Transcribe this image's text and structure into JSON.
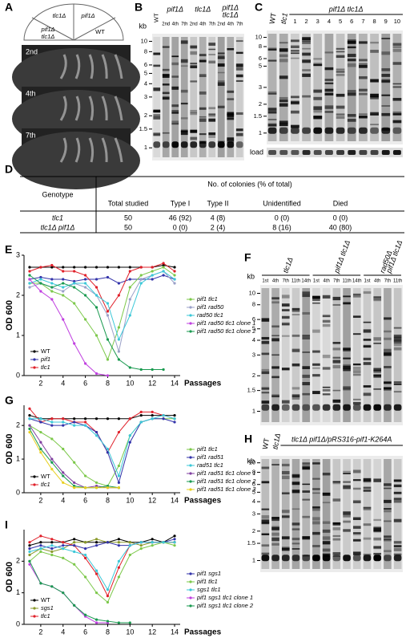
{
  "panel_a": {
    "label": "A",
    "plate_sectors": [
      [
        "tlc1Δ"
      ],
      [
        "pif1Δ"
      ],
      [
        "pif1Δ",
        "tlc1Δ"
      ],
      [
        "WT"
      ]
    ],
    "streaks": [
      "2nd",
      "4th",
      "7th"
    ]
  },
  "panel_b": {
    "label": "B",
    "kb_label": "kb",
    "kb": [
      "10",
      "8",
      "6",
      "5",
      "4",
      "3",
      "2",
      "1.5",
      "1"
    ],
    "lanes": [
      "WT",
      "pif1Δ",
      "tlc1Δ",
      [
        "pif1Δ",
        "tlc1Δ"
      ]
    ],
    "passages": [
      "2nd",
      "4th",
      "7th",
      "2nd",
      "4th",
      "7th",
      "2nd",
      "4th",
      "7th"
    ]
  },
  "panel_c": {
    "label": "C",
    "kb": [
      "10",
      "8",
      "6",
      "5",
      "3",
      "2",
      "1.5",
      "1"
    ],
    "lanes": [
      "WT",
      "tlc1"
    ],
    "group": "pif1Δ tlc1Δ",
    "clones": [
      "1",
      "2",
      "3",
      "4",
      "5",
      "6",
      "7",
      "8",
      "9",
      "10"
    ],
    "load": "load"
  },
  "table": {
    "label": "D",
    "header": [
      "Genotype",
      "No. of colonies (% of total)"
    ],
    "subheader": [
      "Total studied",
      "Type I",
      "Type II",
      "Unidentified",
      "Died"
    ],
    "rows": [
      [
        "tlc1",
        "50",
        "46 (92)",
        "4 (8)",
        "0 (0)",
        "0 (0)"
      ],
      [
        "tlc1Δ pif1Δ",
        "50",
        "0 (0)",
        "2 (4)",
        "8 (16)",
        "40 (80)"
      ]
    ]
  },
  "panel_f": {
    "label": "F",
    "kb_label": "kb",
    "kb": [
      "10",
      "8",
      "6",
      "5",
      "4",
      "3",
      "2",
      "1.5",
      "1"
    ],
    "groups": [
      [
        "tlc1Δ"
      ],
      [
        "pif1Δ tlc1Δ"
      ],
      [
        "rad50Δ",
        "pif1Δ tlc1Δ"
      ]
    ],
    "passages": [
      "1st",
      "4th",
      "7th",
      "11th",
      "14th",
      "1st",
      "4th",
      "7th",
      "11th",
      "14th",
      "1st",
      "4th",
      "7th",
      "11th"
    ]
  },
  "panel_h": {
    "label": "H",
    "kb_label": "kb",
    "kb": [
      "10",
      "8",
      "6",
      "5",
      "4",
      "3",
      "2",
      "1.5",
      "1"
    ],
    "lanes": [
      "WT",
      "tlc1Δ"
    ],
    "group": "tlc1Δ pif1Δ/pRS316-pif1-K264A"
  },
  "chart_data": [
    {
      "type": "line",
      "label": "E",
      "ylabel": "OD 600",
      "xlabel": "Passages",
      "x": [
        1,
        2,
        3,
        4,
        5,
        6,
        7,
        8,
        9,
        10,
        11,
        12,
        13,
        14
      ],
      "xlim": [
        0.5,
        14.5
      ],
      "xticks": [
        2,
        4,
        6,
        8,
        10,
        12,
        14
      ],
      "ylim": [
        0,
        3
      ],
      "yticks": [
        0,
        1,
        2,
        3
      ],
      "series": [
        {
          "name": "WT",
          "color": "#000000",
          "legend": "lower left",
          "values": [
            2.7,
            2.7,
            2.7,
            2.7,
            2.7,
            2.7,
            2.7,
            2.7,
            2.7,
            2.7,
            2.7,
            2.7,
            2.75,
            2.7
          ]
        },
        {
          "name": "pif1",
          "color": "#3333aa",
          "legend": "lower left",
          "values": [
            2.4,
            2.45,
            2.4,
            2.4,
            2.35,
            2.4,
            2.4,
            2.45,
            2.3,
            2.4,
            2.4,
            2.4,
            2.5,
            2.4
          ]
        },
        {
          "name": "tlc1",
          "color": "#e0202a",
          "legend": "lower left",
          "values": [
            2.6,
            2.7,
            2.75,
            2.6,
            2.6,
            2.5,
            2.2,
            1.6,
            2.0,
            2.6,
            2.7,
            2.7,
            2.8,
            2.6
          ]
        },
        {
          "name": "pif1 tlc1",
          "color": "#7cc84a",
          "legend": "right",
          "values": [
            2.3,
            2.3,
            2.1,
            2.0,
            1.8,
            1.4,
            1.0,
            0.4,
            1.2,
            2.2,
            2.5,
            2.6,
            2.7,
            2.5
          ]
        },
        {
          "name": "pif1 rad50",
          "color": "#9aa0c8",
          "legend": "right",
          "values": [
            2.2,
            2.3,
            2.2,
            2.1,
            2.3,
            2.2,
            2.0,
            1.5,
            0.6,
            1.9,
            2.4,
            2.5,
            2.6,
            2.3
          ]
        },
        {
          "name": "rad50 tlc1",
          "color": "#3cc8d8",
          "legend": "right",
          "values": [
            2.3,
            2.4,
            2.3,
            2.2,
            2.3,
            2.3,
            2.0,
            1.8,
            0.9,
            1.5,
            2.3,
            2.5,
            2.6,
            2.4
          ]
        },
        {
          "name": "pif1 rad50 tlc1 clone 1",
          "color": "#c040e0",
          "legend": "right",
          "values": [
            2.4,
            2.1,
            1.9,
            1.4,
            0.8,
            0.3,
            0.05,
            0.0,
            null,
            null,
            null,
            null,
            null,
            null
          ]
        },
        {
          "name": "pif1 rad50 tlc1 clone 2",
          "color": "#1a9a50",
          "legend": "right",
          "values": [
            2.5,
            2.3,
            2.2,
            2.3,
            2.2,
            2.0,
            1.7,
            0.9,
            0.4,
            0.2,
            0.15,
            0.15,
            0.15,
            null
          ]
        }
      ]
    },
    {
      "type": "line",
      "label": "G",
      "ylabel": "OD 600",
      "xlabel": "Passages",
      "x": [
        1,
        2,
        3,
        4,
        5,
        6,
        7,
        8,
        9,
        10,
        11,
        12,
        13,
        14
      ],
      "xlim": [
        0.5,
        14.5
      ],
      "xticks": [
        2,
        4,
        6,
        8,
        10,
        12,
        14
      ],
      "ylim": [
        0,
        2.6
      ],
      "yticks": [
        0,
        1,
        2
      ],
      "series": [
        {
          "name": "WT",
          "color": "#000000",
          "legend": "lower left",
          "values": [
            2.3,
            2.2,
            2.2,
            2.2,
            2.2,
            2.2,
            2.2,
            2.2,
            2.2,
            2.2,
            2.3,
            2.3,
            2.3,
            2.3
          ]
        },
        {
          "name": "tlc1",
          "color": "#e0202a",
          "legend": "lower left",
          "values": [
            2.5,
            2.1,
            2.2,
            2.2,
            2.1,
            2.1,
            1.8,
            1.2,
            1.8,
            2.2,
            2.4,
            2.4,
            2.3,
            2.2
          ]
        },
        {
          "name": "pif1 tlc1",
          "color": "#7cc84a",
          "legend": "right",
          "values": [
            2.0,
            1.8,
            1.6,
            1.3,
            0.9,
            0.5,
            0.3,
            0.2,
            0.8,
            1.7,
            2.1,
            2.2,
            2.2,
            2.2
          ]
        },
        {
          "name": "pif1 rad51",
          "color": "#3333aa",
          "legend": "right",
          "values": [
            2.2,
            2.1,
            2.0,
            2.0,
            2.1,
            2.0,
            1.8,
            1.2,
            0.3,
            1.5,
            2.1,
            2.2,
            2.2,
            2.1
          ]
        },
        {
          "name": "rad51 tlc1",
          "color": "#3cc8d8",
          "legend": "right",
          "values": [
            2.2,
            2.2,
            2.1,
            2.1,
            2.0,
            2.0,
            1.7,
            1.3,
            0.5,
            1.7,
            2.1,
            2.2,
            2.3,
            2.2
          ]
        },
        {
          "name": "pif1 rad51 tlc1 clone 1",
          "color": "#8040a0",
          "legend": "right",
          "values": [
            2.0,
            1.5,
            1.0,
            0.6,
            0.3,
            0.15,
            0.2,
            0.15,
            0.15,
            null,
            null,
            null,
            null,
            null
          ]
        },
        {
          "name": "pif1 rad51 tlc1 clone 2",
          "color": "#1a9a50",
          "legend": "right",
          "values": [
            1.9,
            1.3,
            0.9,
            0.5,
            0.2,
            0.15,
            0.15,
            0.2,
            0.15,
            null,
            null,
            null,
            null,
            null
          ]
        },
        {
          "name": "pif1 rad51 tlc1 clone 3",
          "color": "#e8d020",
          "legend": "right",
          "values": [
            1.8,
            1.2,
            0.7,
            0.3,
            0.15,
            0.15,
            0.15,
            0.15,
            0.15,
            null,
            null,
            null,
            null,
            null
          ]
        }
      ]
    },
    {
      "type": "line",
      "label": "I",
      "ylabel": "OD 600",
      "xlabel": "Passages",
      "x": [
        1,
        2,
        3,
        4,
        5,
        6,
        7,
        8,
        9,
        10,
        11,
        12,
        13,
        14
      ],
      "xlim": [
        0.5,
        14.5
      ],
      "xticks": [
        2,
        4,
        6,
        8,
        10,
        12,
        14
      ],
      "ylim": [
        0,
        3
      ],
      "yticks": [
        0,
        1,
        2
      ],
      "series": [
        {
          "name": "WT",
          "color": "#000000",
          "legend": "lower left",
          "values": [
            2.5,
            2.6,
            2.6,
            2.6,
            2.7,
            2.6,
            2.6,
            2.6,
            2.7,
            2.6,
            2.6,
            2.7,
            2.6,
            2.8
          ]
        },
        {
          "name": "sgs1",
          "color": "#8a9a2a",
          "legend": "lower left",
          "values": [
            2.2,
            2.4,
            2.3,
            2.4,
            2.6,
            2.6,
            2.7,
            2.6,
            2.6,
            2.6,
            2.5,
            2.6,
            2.6,
            2.6
          ]
        },
        {
          "name": "tlc1",
          "color": "#e0202a",
          "legend": "lower left",
          "values": [
            2.6,
            2.8,
            2.7,
            2.6,
            2.5,
            2.1,
            1.6,
            0.9,
            1.8,
            2.5,
            2.6,
            2.6,
            2.6,
            2.6
          ]
        },
        {
          "name": "pif1 sgs1",
          "color": "#3333aa",
          "legend": "right",
          "values": [
            2.4,
            2.5,
            2.4,
            2.5,
            2.5,
            2.4,
            2.5,
            2.6,
            2.5,
            2.5,
            2.6,
            2.6,
            2.6,
            2.7
          ]
        },
        {
          "name": "pif1 tlc1",
          "color": "#7cc84a",
          "legend": "right",
          "values": [
            2.0,
            2.3,
            2.2,
            2.1,
            1.9,
            1.5,
            1.0,
            0.7,
            1.5,
            2.2,
            2.4,
            2.5,
            2.6,
            2.5
          ]
        },
        {
          "name": "sgs1 tlc1",
          "color": "#3cc8d8",
          "legend": "right",
          "values": [
            2.3,
            2.4,
            2.5,
            2.4,
            2.3,
            2.2,
            1.7,
            1.1,
            2.0,
            2.5,
            2.6,
            2.6,
            2.6,
            2.6
          ]
        },
        {
          "name": "pif1 sgs1 tlc1 clone 1",
          "color": "#c040e0",
          "legend": "right",
          "values": [
            1.9,
            1.3,
            1.2,
            1.0,
            0.6,
            0.25,
            0.05,
            0.05,
            null,
            null,
            null,
            null,
            null,
            null
          ]
        },
        {
          "name": "pif1 sgs1 tlc1 clone 2",
          "color": "#1a9a50",
          "legend": "right",
          "values": [
            2.0,
            1.3,
            1.2,
            1.0,
            0.6,
            0.3,
            0.15,
            0.1,
            0.05,
            0.05,
            null,
            null,
            null,
            null
          ]
        }
      ]
    }
  ]
}
